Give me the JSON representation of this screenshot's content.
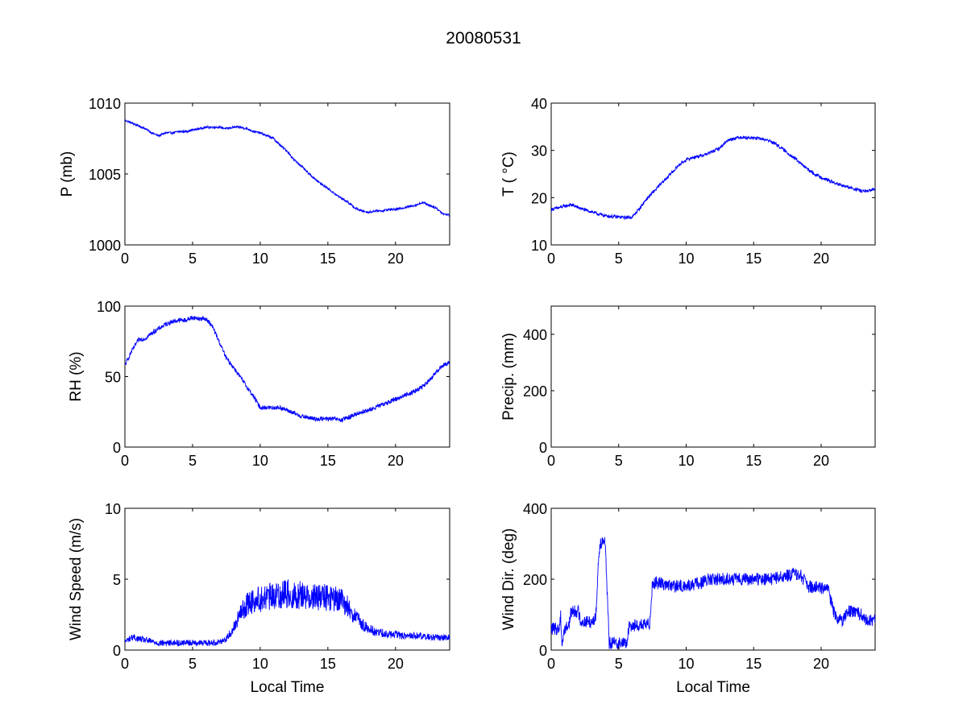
{
  "figure": {
    "title": "20080531",
    "line_color": "#0000ff",
    "axes_color": "#000000",
    "background": "#ffffff"
  },
  "chart_data": [
    {
      "id": "pressure",
      "type": "line",
      "title": "",
      "xlabel": "",
      "ylabel": "P (mb)",
      "xlim": [
        0,
        24
      ],
      "ylim": [
        1000,
        1010
      ],
      "xticks": [
        0,
        5,
        10,
        15,
        20
      ],
      "yticks": [
        1000,
        1005,
        1010
      ],
      "grid": false,
      "series": [
        {
          "noise": 0.08,
          "x": [
            0,
            0.5,
            1,
            1.5,
            2,
            2.5,
            3,
            3.5,
            4,
            4.5,
            5,
            5.5,
            6,
            6.5,
            7,
            7.5,
            8,
            8.5,
            9,
            9.5,
            10,
            10.5,
            11,
            11.5,
            12,
            12.5,
            13,
            13.5,
            14,
            14.5,
            15,
            15.5,
            16,
            16.5,
            17,
            17.5,
            18,
            18.5,
            19,
            19.5,
            20,
            20.5,
            21,
            21.5,
            22,
            22.5,
            23,
            23.5,
            24
          ],
          "y": [
            1008.8,
            1008.6,
            1008.4,
            1008.2,
            1007.9,
            1007.7,
            1007.9,
            1007.9,
            1008.0,
            1008.0,
            1008.1,
            1008.2,
            1008.3,
            1008.3,
            1008.3,
            1008.2,
            1008.3,
            1008.3,
            1008.2,
            1008.0,
            1007.9,
            1007.7,
            1007.5,
            1007.0,
            1006.6,
            1006.0,
            1005.6,
            1005.1,
            1004.7,
            1004.3,
            1004.0,
            1003.6,
            1003.3,
            1003.0,
            1002.6,
            1002.4,
            1002.3,
            1002.4,
            1002.4,
            1002.5,
            1002.5,
            1002.6,
            1002.7,
            1002.8,
            1003.0,
            1002.8,
            1002.6,
            1002.2,
            1002.1
          ]
        }
      ]
    },
    {
      "id": "temperature",
      "type": "line",
      "title": "",
      "xlabel": "",
      "ylabel": "T ( °C)",
      "xlim": [
        0,
        24
      ],
      "ylim": [
        10,
        40
      ],
      "xticks": [
        0,
        5,
        10,
        15,
        20
      ],
      "yticks": [
        10,
        20,
        30,
        40
      ],
      "grid": false,
      "series": [
        {
          "noise": 0.35,
          "x": [
            0,
            0.5,
            1,
            1.5,
            2,
            2.5,
            3,
            3.5,
            4,
            4.5,
            5,
            5.5,
            6,
            6.5,
            7,
            7.5,
            8,
            8.5,
            9,
            9.5,
            10,
            10.5,
            11,
            11.5,
            12,
            12.5,
            13,
            13.5,
            14,
            14.5,
            15,
            15.5,
            16,
            16.5,
            17,
            17.5,
            18,
            18.5,
            19,
            19.5,
            20,
            20.5,
            21,
            21.5,
            22,
            22.5,
            23,
            23.5,
            24
          ],
          "y": [
            17.5,
            17.8,
            18.2,
            18.5,
            17.9,
            17.4,
            17.0,
            16.5,
            16.2,
            16.0,
            15.9,
            15.8,
            15.9,
            17.5,
            19.5,
            21.0,
            22.5,
            24.0,
            25.5,
            27.0,
            28.0,
            28.5,
            28.8,
            29.2,
            29.8,
            30.5,
            32.0,
            32.5,
            32.8,
            32.7,
            32.6,
            32.5,
            32.2,
            31.6,
            30.6,
            29.5,
            28.4,
            27.2,
            26.0,
            25.0,
            24.3,
            23.7,
            23.1,
            22.6,
            22.2,
            21.8,
            21.4,
            21.3,
            22.0
          ]
        }
      ]
    },
    {
      "id": "relative-humidity",
      "type": "line",
      "title": "",
      "xlabel": "",
      "ylabel": "RH (%)",
      "xlim": [
        0,
        24
      ],
      "ylim": [
        0,
        100
      ],
      "xticks": [
        0,
        5,
        10,
        15,
        20
      ],
      "yticks": [
        0,
        50,
        100
      ],
      "grid": false,
      "series": [
        {
          "noise": 1.6,
          "x": [
            0,
            0.5,
            1,
            1.5,
            2,
            2.5,
            3,
            3.5,
            4,
            4.5,
            5,
            5.5,
            6,
            6.5,
            7,
            7.5,
            8,
            8.5,
            9,
            9.5,
            10,
            10.5,
            11,
            11.5,
            12,
            12.5,
            13,
            13.5,
            14,
            14.5,
            15,
            15.5,
            16,
            16.5,
            17,
            17.5,
            18,
            18.5,
            19,
            19.5,
            20,
            20.5,
            21,
            21.5,
            22,
            22.5,
            23,
            23.5,
            24
          ],
          "y": [
            58,
            68,
            76,
            77,
            81,
            84,
            87,
            89,
            90,
            90,
            92,
            91,
            91,
            85,
            74,
            63,
            57,
            50,
            43,
            36,
            28,
            28,
            28,
            28,
            26,
            24,
            22,
            21,
            20,
            20,
            20,
            20,
            19,
            21,
            23,
            25,
            26,
            28,
            30,
            32,
            34,
            36,
            38,
            40,
            43,
            47,
            53,
            58,
            60
          ]
        }
      ]
    },
    {
      "id": "precipitation",
      "type": "line",
      "title": "",
      "xlabel": "",
      "ylabel": "Precip. (mm)",
      "xlim": [
        0,
        24
      ],
      "ylim": [
        0,
        500
      ],
      "xticks": [
        0,
        5,
        10,
        15,
        20
      ],
      "yticks": [
        0,
        200,
        400
      ],
      "grid": false,
      "series": []
    },
    {
      "id": "wind-speed",
      "type": "line",
      "title": "",
      "xlabel": "Local Time",
      "ylabel": "Wind Speed (m/s)",
      "xlim": [
        0,
        24
      ],
      "ylim": [
        0,
        10
      ],
      "xticks": [
        0,
        5,
        10,
        15,
        20
      ],
      "yticks": [
        0,
        5,
        10
      ],
      "grid": false,
      "series": [
        {
          "noise": 0.9,
          "x": [
            0,
            0.5,
            1,
            1.5,
            2,
            2.5,
            3,
            3.5,
            4,
            4.5,
            5,
            5.5,
            6,
            6.5,
            7,
            7.5,
            8,
            8.5,
            9,
            9.5,
            10,
            10.5,
            11,
            11.5,
            12,
            12.5,
            13,
            13.5,
            14,
            14.5,
            15,
            15.5,
            16,
            16.5,
            17,
            17.5,
            18,
            18.5,
            19,
            19.5,
            20,
            20.5,
            21,
            21.5,
            22,
            22.5,
            23,
            23.5,
            24
          ],
          "y": [
            0.6,
            0.9,
            0.8,
            0.7,
            0.6,
            0.5,
            0.5,
            0.5,
            0.5,
            0.5,
            0.5,
            0.5,
            0.5,
            0.5,
            0.6,
            0.8,
            1.5,
            2.5,
            3.2,
            3.5,
            3.6,
            3.7,
            3.8,
            3.9,
            4.0,
            3.8,
            3.9,
            3.8,
            3.8,
            3.7,
            3.7,
            3.6,
            3.5,
            3.0,
            2.4,
            1.8,
            1.5,
            1.3,
            1.2,
            1.1,
            1.1,
            1.0,
            1.0,
            1.0,
            1.0,
            0.9,
            0.9,
            0.9,
            0.9
          ]
        }
      ]
    },
    {
      "id": "wind-direction",
      "type": "line",
      "title": "",
      "xlabel": "Local Time",
      "ylabel": "Wind Dir. (deg)",
      "xlim": [
        0,
        24
      ],
      "ylim": [
        0,
        400
      ],
      "xticks": [
        0,
        5,
        10,
        15,
        20
      ],
      "yticks": [
        0,
        200,
        400
      ],
      "grid": false,
      "series": [
        {
          "noise": 18,
          "x": [
            0,
            0.6,
            0.7,
            0.8,
            1.0,
            1.3,
            1.5,
            2.0,
            2.2,
            2.8,
            3.0,
            3.3,
            3.5,
            3.6,
            3.8,
            4.0,
            4.1,
            4.3,
            4.6,
            5.0,
            5.5,
            5.6,
            5.8,
            6.5,
            7.0,
            7.3,
            7.5,
            8,
            9,
            10,
            11,
            12,
            13,
            14,
            15,
            16,
            17,
            18,
            18.5,
            19,
            20,
            20.5,
            21,
            21.5,
            22,
            23,
            23.5,
            24
          ],
          "y": [
            60,
            60,
            100,
            15,
            60,
            70,
            110,
            110,
            80,
            80,
            80,
            90,
            250,
            300,
            310,
            310,
            200,
            20,
            20,
            20,
            20,
            20,
            70,
            70,
            70,
            75,
            190,
            190,
            180,
            180,
            190,
            200,
            200,
            200,
            200,
            200,
            205,
            215,
            210,
            180,
            175,
            170,
            100,
            80,
            110,
            100,
            80,
            90
          ]
        }
      ]
    }
  ]
}
